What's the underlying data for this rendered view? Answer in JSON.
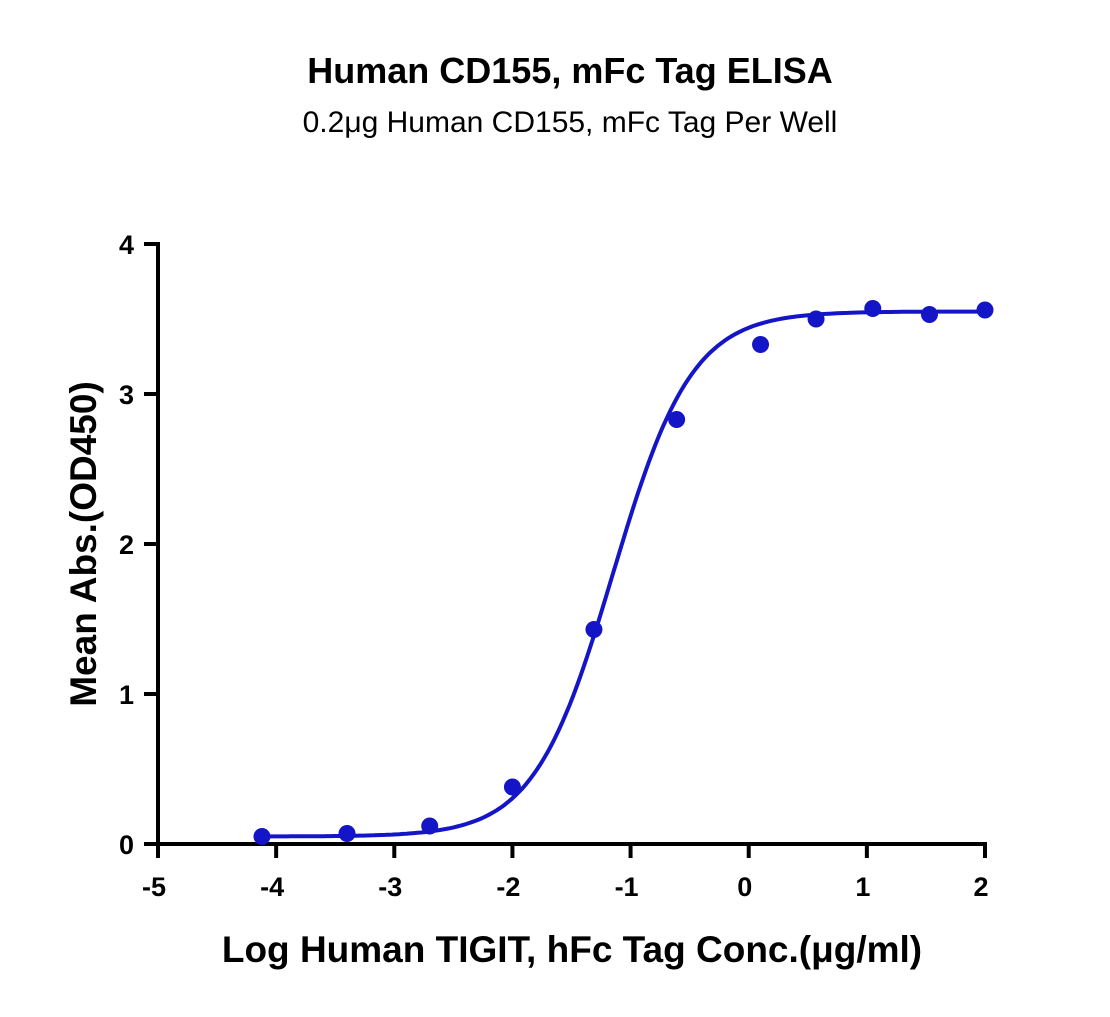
{
  "chart_data": {
    "type": "scatter",
    "title": "Human CD155, mFc Tag ELISA",
    "subtitle": "0.2μg Human CD155, mFc Tag Per Well",
    "xlabel": "Log Human TIGIT, hFc Tag Conc.(μg/ml)",
    "ylabel": "Mean Abs.(OD450)",
    "xlim": [
      -5,
      2
    ],
    "ylim": [
      0,
      4
    ],
    "xticks": [
      -5,
      -4,
      -3,
      -2,
      -1,
      0,
      1,
      2
    ],
    "yticks": [
      0,
      1,
      2,
      3,
      4
    ],
    "grid": false,
    "fit_curve": "sigmoidal",
    "color": "#1515c8",
    "x": [
      -4.12,
      -3.4,
      -2.7,
      -2.0,
      -1.31,
      -0.61,
      0.1,
      0.57,
      1.05,
      1.53,
      2.0
    ],
    "y": [
      0.05,
      0.07,
      0.12,
      0.38,
      1.43,
      2.83,
      3.33,
      3.5,
      3.57,
      3.53,
      3.56
    ]
  }
}
